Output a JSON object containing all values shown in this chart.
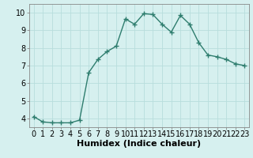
{
  "x": [
    0,
    1,
    2,
    3,
    4,
    5,
    6,
    7,
    8,
    9,
    10,
    11,
    12,
    13,
    14,
    15,
    16,
    17,
    18,
    19,
    20,
    21,
    22,
    23
  ],
  "y": [
    4.1,
    3.8,
    3.75,
    3.75,
    3.75,
    3.9,
    6.6,
    7.35,
    7.8,
    8.1,
    9.65,
    9.35,
    9.95,
    9.9,
    9.35,
    8.9,
    9.85,
    9.35,
    8.3,
    7.6,
    7.5,
    7.35,
    7.1,
    7.0
  ],
  "line_color": "#2e7d6e",
  "marker": "+",
  "marker_size": 4,
  "bg_color": "#d6f0ef",
  "grid_color": "#b8dedd",
  "xlabel": "Humidex (Indice chaleur)",
  "ylim": [
    3.5,
    10.5
  ],
  "xlim": [
    -0.5,
    23.5
  ],
  "yticks": [
    4,
    5,
    6,
    7,
    8,
    9,
    10
  ],
  "xticks": [
    0,
    1,
    2,
    3,
    4,
    5,
    6,
    7,
    8,
    9,
    10,
    11,
    12,
    13,
    14,
    15,
    16,
    17,
    18,
    19,
    20,
    21,
    22,
    23
  ],
  "xtick_labels": [
    "0",
    "1",
    "2",
    "3",
    "4",
    "5",
    "6",
    "7",
    "8",
    "9",
    "10",
    "11",
    "12",
    "13",
    "14",
    "15",
    "16",
    "17",
    "18",
    "19",
    "20",
    "21",
    "22",
    "23"
  ],
  "xlabel_fontsize": 8,
  "tick_fontsize": 7
}
